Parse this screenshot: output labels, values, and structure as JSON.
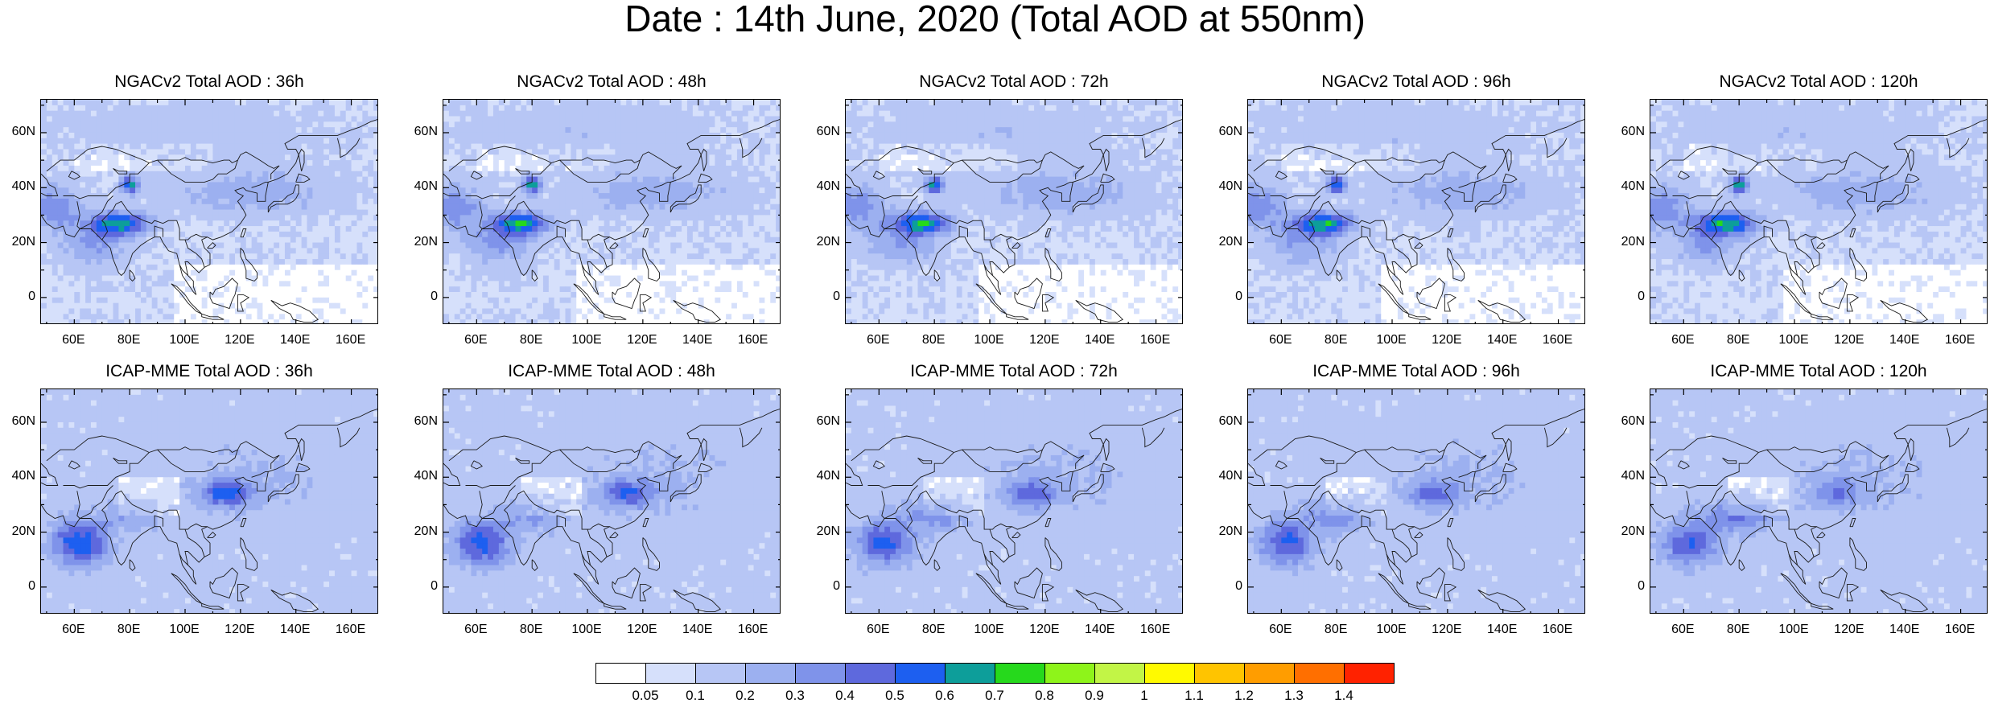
{
  "main_title": "Date : 14th June, 2020 (Total AOD at 550nm)",
  "y_ticks": [
    "60N",
    "40N",
    "20N",
    "0"
  ],
  "x_ticks": [
    "60E",
    "80E",
    "100E",
    "120E",
    "140E",
    "160E"
  ],
  "panels": [
    {
      "title": "NGACv2 Total AOD : 36h"
    },
    {
      "title": "NGACv2 Total AOD : 48h"
    },
    {
      "title": "NGACv2 Total AOD : 72h"
    },
    {
      "title": "NGACv2 Total AOD : 96h"
    },
    {
      "title": "NGACv2 Total AOD : 120h"
    },
    {
      "title": "ICAP-MME Total AOD : 36h"
    },
    {
      "title": "ICAP-MME Total AOD : 48h"
    },
    {
      "title": "ICAP-MME Total AOD : 72h"
    },
    {
      "title": "ICAP-MME Total AOD : 96h"
    },
    {
      "title": "ICAP-MME Total AOD : 120h"
    }
  ],
  "colorbar": {
    "labels": [
      "0.05",
      "0.1",
      "0.2",
      "0.3",
      "0.4",
      "0.5",
      "0.6",
      "0.7",
      "0.8",
      "0.9",
      "1",
      "1.1",
      "1.2",
      "1.3",
      "1.4"
    ],
    "colors": [
      "#ffffff",
      "#d6e0fb",
      "#b7c6f5",
      "#9cb0f0",
      "#7f93ea",
      "#5e69dd",
      "#1d5ff0",
      "#0d9e9a",
      "#26d91c",
      "#8ef41a",
      "#c2f546",
      "#fffa00",
      "#ffc400",
      "#ff9d00",
      "#ff6f00",
      "#ff2200"
    ]
  }
}
